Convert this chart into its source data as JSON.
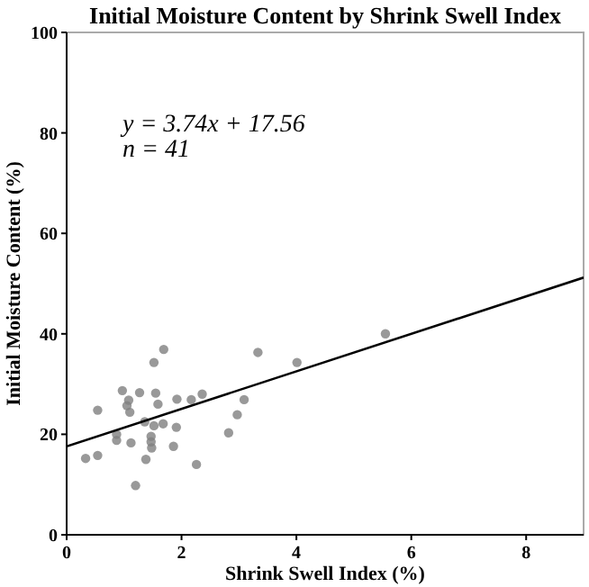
{
  "chart_data": {
    "type": "scatter",
    "title": "Initial Moisture Content by Shrink Swell Index",
    "xlabel": "Shrink Swell Index (%)",
    "ylabel": "Initial Moisture Content (%)",
    "xlim": [
      0,
      9
    ],
    "ylim": [
      0,
      100
    ],
    "xticks": [
      0,
      2,
      4,
      6,
      8
    ],
    "yticks": [
      0,
      20,
      40,
      60,
      80,
      100
    ],
    "grid": false,
    "annotations": [
      "y = 3.74x + 17.56",
      "n = 41"
    ],
    "series": [
      {
        "color": "#7f7f7f",
        "marker": "circle",
        "x": [
          0.33,
          0.54,
          0.54,
          0.87,
          0.87,
          0.97,
          1.05,
          1.08,
          1.1,
          1.12,
          1.2,
          1.27,
          1.36,
          1.38,
          1.47,
          1.47,
          1.48,
          1.52,
          1.52,
          1.55,
          1.59,
          1.68,
          1.69,
          1.86,
          1.91,
          1.92,
          2.17,
          2.26,
          2.36,
          2.82,
          2.97,
          3.09,
          3.33,
          4.01,
          5.55
        ],
        "values": [
          15.2,
          15.8,
          24.8,
          20,
          18.8,
          28.7,
          25.7,
          26.8,
          24.4,
          18.3,
          9.8,
          28.3,
          22.5,
          15,
          19.6,
          18.5,
          17.3,
          34.3,
          21.7,
          28.2,
          26,
          22.1,
          36.9,
          17.6,
          21.4,
          27,
          26.9,
          14,
          28,
          20.3,
          23.9,
          26.9,
          36.3,
          34.3,
          40
        ]
      },
      {
        "type": "line",
        "color": "#000000",
        "x": [
          0,
          9
        ],
        "values": [
          17.6,
          51.2
        ],
        "line_style": "solid",
        "marker": "none"
      }
    ]
  }
}
